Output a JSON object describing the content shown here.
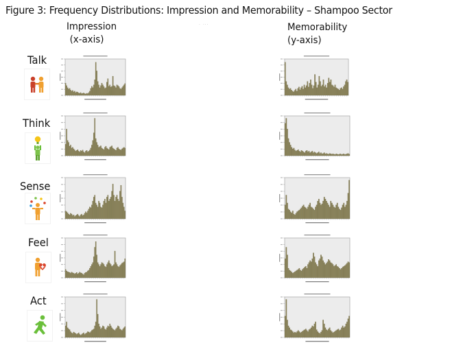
{
  "figure": {
    "title": "Figure 3: Frequency Distributions: Impression and Memorability – Shampoo Sector",
    "columns": [
      {
        "title": "Impression",
        "subtitle": "(x-axis)"
      },
      {
        "title": "Memorability",
        "subtitle": "(y-axis)"
      }
    ],
    "rows": [
      {
        "label": "Talk",
        "icon": "talk-people-icon"
      },
      {
        "label": "Think",
        "icon": "think-lightbulb-person-icon"
      },
      {
        "label": "Sense",
        "icon": "sense-juggling-person-icon"
      },
      {
        "label": "Feel",
        "icon": "feel-heart-person-icon"
      },
      {
        "label": "Act",
        "icon": "act-running-person-icon"
      }
    ],
    "colors": {
      "bar": "#8a8259",
      "bar_edge": "#6f6a45",
      "plot_bg": "#ececec",
      "axis": "#9a9a9a"
    }
  },
  "chart_data": [
    {
      "type": "bar",
      "row": "Talk",
      "column": "Impression",
      "title": "",
      "xlabel": "",
      "ylabel": "Frequency",
      "grid": false,
      "values": [
        35,
        28,
        22,
        18,
        20,
        15,
        12,
        14,
        10,
        12,
        8,
        10,
        9,
        7,
        6,
        8,
        5,
        6,
        7,
        5,
        4,
        6,
        5,
        8,
        12,
        20,
        26,
        22,
        30,
        45,
        95,
        70,
        40,
        30,
        22,
        28,
        35,
        30,
        25,
        20,
        22,
        38,
        48,
        26,
        30,
        24,
        26,
        55,
        28,
        26,
        22,
        30,
        28,
        25,
        20,
        18,
        22,
        26,
        30,
        34
      ]
    },
    {
      "type": "bar",
      "row": "Talk",
      "column": "Memorability",
      "title": "",
      "xlabel": "",
      "ylabel": "Frequency",
      "grid": false,
      "values": [
        95,
        40,
        30,
        22,
        18,
        20,
        15,
        12,
        10,
        14,
        18,
        12,
        20,
        24,
        16,
        22,
        26,
        18,
        30,
        22,
        28,
        40,
        24,
        35,
        45,
        30,
        20,
        28,
        60,
        38,
        22,
        30,
        55,
        40,
        26,
        30,
        45,
        25,
        30,
        22,
        35,
        50,
        38,
        45,
        30,
        28,
        24,
        30,
        22,
        20,
        18,
        15,
        20,
        22,
        18,
        25,
        30,
        40,
        45,
        38
      ]
    },
    {
      "type": "bar",
      "row": "Think",
      "column": "Impression",
      "title": "",
      "xlabel": "",
      "ylabel": "Frequency",
      "grid": false,
      "values": [
        30,
        70,
        40,
        35,
        25,
        28,
        20,
        22,
        18,
        15,
        12,
        14,
        16,
        12,
        10,
        14,
        12,
        15,
        10,
        8,
        12,
        14,
        10,
        12,
        15,
        20,
        28,
        40,
        60,
        98,
        45,
        35,
        28,
        22,
        24,
        26,
        20,
        18,
        16,
        22,
        25,
        20,
        18,
        16,
        22,
        24,
        26,
        20,
        18,
        16,
        14,
        20,
        22,
        18,
        16,
        15,
        18,
        20,
        22,
        20
      ]
    },
    {
      "type": "bar",
      "row": "Think",
      "column": "Memorability",
      "title": "",
      "xlabel": "",
      "ylabel": "Frequency",
      "grid": false,
      "values": [
        85,
        98,
        70,
        45,
        35,
        28,
        22,
        18,
        20,
        15,
        12,
        14,
        16,
        12,
        10,
        14,
        12,
        10,
        8,
        12,
        14,
        10,
        12,
        8,
        10,
        12,
        8,
        10,
        8,
        6,
        8,
        10,
        6,
        8,
        5,
        6,
        8,
        5,
        6,
        5,
        4,
        6,
        5,
        4,
        5,
        4,
        3,
        5,
        4,
        3,
        4,
        5,
        3,
        4,
        5,
        3,
        4,
        5,
        6,
        4
      ]
    },
    {
      "type": "bar",
      "row": "Sense",
      "column": "Impression",
      "title": "",
      "xlabel": "",
      "ylabel": "Frequency",
      "grid": false,
      "values": [
        20,
        18,
        15,
        12,
        10,
        14,
        12,
        8,
        10,
        6,
        8,
        10,
        12,
        8,
        6,
        10,
        12,
        8,
        10,
        14,
        18,
        15,
        20,
        25,
        30,
        28,
        35,
        45,
        55,
        60,
        40,
        35,
        30,
        45,
        40,
        30,
        28,
        35,
        45,
        50,
        40,
        55,
        60,
        45,
        50,
        55,
        70,
        88,
        60,
        45,
        55,
        60,
        50,
        45,
        70,
        85,
        55,
        40,
        30,
        20
      ]
    },
    {
      "type": "bar",
      "row": "Sense",
      "column": "Memorability",
      "title": "",
      "xlabel": "",
      "ylabel": "Frequency",
      "grid": false,
      "values": [
        35,
        60,
        40,
        25,
        22,
        18,
        15,
        20,
        12,
        10,
        14,
        18,
        20,
        22,
        25,
        28,
        32,
        35,
        30,
        28,
        25,
        30,
        35,
        40,
        30,
        28,
        25,
        22,
        30,
        35,
        45,
        50,
        40,
        35,
        38,
        45,
        55,
        50,
        45,
        40,
        35,
        30,
        45,
        40,
        35,
        30,
        28,
        35,
        40,
        30,
        25,
        22,
        28,
        35,
        40,
        30,
        35,
        45,
        65,
        98
      ]
    },
    {
      "type": "bar",
      "row": "Feel",
      "column": "Impression",
      "title": "",
      "xlabel": "",
      "ylabel": "Frequency",
      "grid": false,
      "values": [
        22,
        18,
        16,
        15,
        14,
        12,
        15,
        13,
        12,
        10,
        12,
        14,
        10,
        12,
        15,
        13,
        12,
        10,
        8,
        12,
        14,
        15,
        18,
        20,
        25,
        30,
        35,
        40,
        55,
        80,
        95,
        60,
        40,
        35,
        30,
        35,
        40,
        38,
        35,
        30,
        28,
        35,
        40,
        45,
        38,
        35,
        30,
        32,
        35,
        70,
        40,
        35,
        30,
        28,
        32,
        35,
        38,
        40,
        42,
        50
      ]
    },
    {
      "type": "bar",
      "row": "Feel",
      "column": "Memorability",
      "title": "",
      "xlabel": "",
      "ylabel": "Frequency",
      "grid": false,
      "values": [
        50,
        80,
        60,
        25,
        20,
        18,
        15,
        12,
        14,
        16,
        18,
        20,
        22,
        25,
        20,
        18,
        22,
        25,
        28,
        30,
        25,
        35,
        40,
        45,
        42,
        50,
        65,
        55,
        40,
        35,
        30,
        45,
        50,
        60,
        55,
        45,
        40,
        35,
        38,
        42,
        48,
        45,
        40,
        38,
        35,
        30,
        32,
        35,
        30,
        28,
        25,
        22,
        25,
        28,
        30,
        32,
        35,
        38,
        42,
        40
      ]
    },
    {
      "type": "bar",
      "row": "Act",
      "column": "Impression",
      "title": "",
      "xlabel": "",
      "ylabel": "Frequency",
      "grid": false,
      "values": [
        30,
        40,
        25,
        22,
        20,
        15,
        12,
        10,
        14,
        12,
        10,
        8,
        10,
        12,
        8,
        6,
        8,
        10,
        12,
        8,
        10,
        12,
        15,
        14,
        12,
        15,
        18,
        20,
        22,
        30,
        40,
        98,
        60,
        35,
        28,
        22,
        25,
        30,
        28,
        22,
        20,
        25,
        30,
        28,
        35,
        30,
        25,
        22,
        20,
        18,
        22,
        25,
        30,
        28,
        22,
        20,
        18,
        22,
        25,
        28
      ]
    },
    {
      "type": "bar",
      "row": "Act",
      "column": "Memorability",
      "title": "",
      "xlabel": "",
      "ylabel": "Frequency",
      "grid": false,
      "values": [
        55,
        98,
        45,
        30,
        25,
        20,
        18,
        15,
        12,
        14,
        12,
        15,
        18,
        15,
        12,
        14,
        16,
        18,
        20,
        22,
        18,
        15,
        20,
        22,
        25,
        30,
        28,
        35,
        40,
        20,
        15,
        12,
        10,
        14,
        18,
        45,
        35,
        25,
        20,
        18,
        22,
        25,
        18,
        15,
        12,
        14,
        16,
        18,
        20,
        22,
        18,
        20,
        25,
        30,
        25,
        28,
        35,
        40,
        48,
        55
      ]
    }
  ]
}
